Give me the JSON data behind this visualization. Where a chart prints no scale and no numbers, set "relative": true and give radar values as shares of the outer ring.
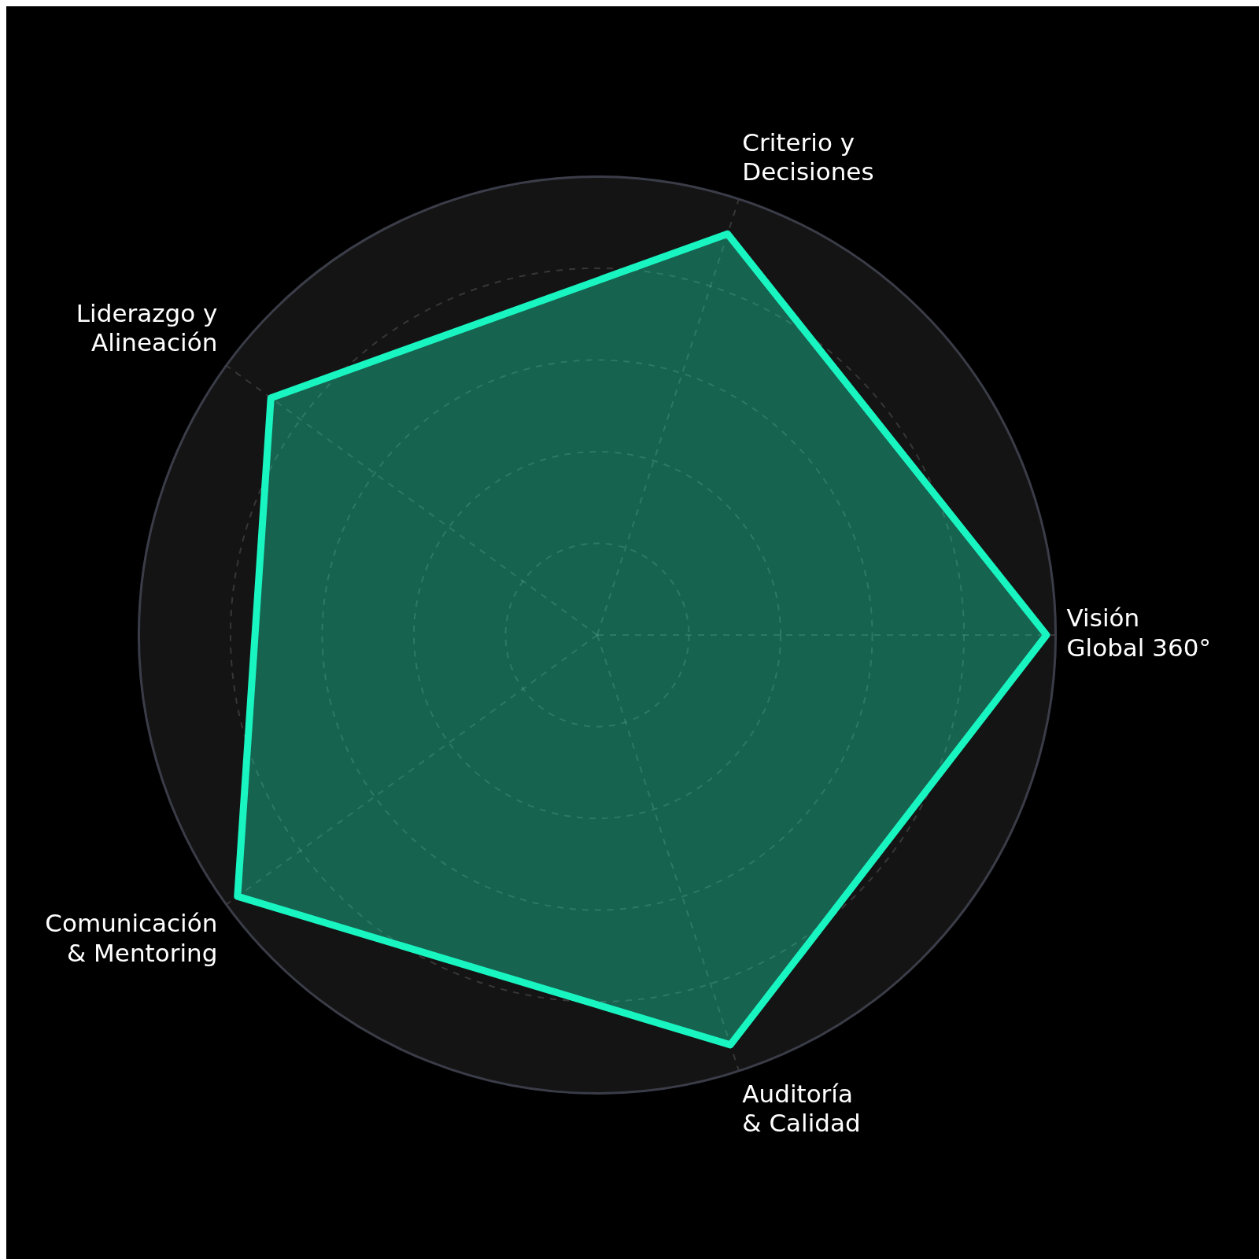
{
  "chart_data": {
    "type": "radar",
    "relative": true,
    "grid": true,
    "marker": "none",
    "legend": false,
    "categories": [
      "Criterio y Decisiones",
      "Visión Global 360°",
      "Auditoría & Calidad",
      "Comunicación & Mentoring",
      "Liderazgo y Alineación"
    ],
    "series": [
      {
        "color": "#19f5c1",
        "values": [
          0.92,
          0.98,
          0.94,
          0.97,
          0.88
        ]
      }
    ]
  }
}
